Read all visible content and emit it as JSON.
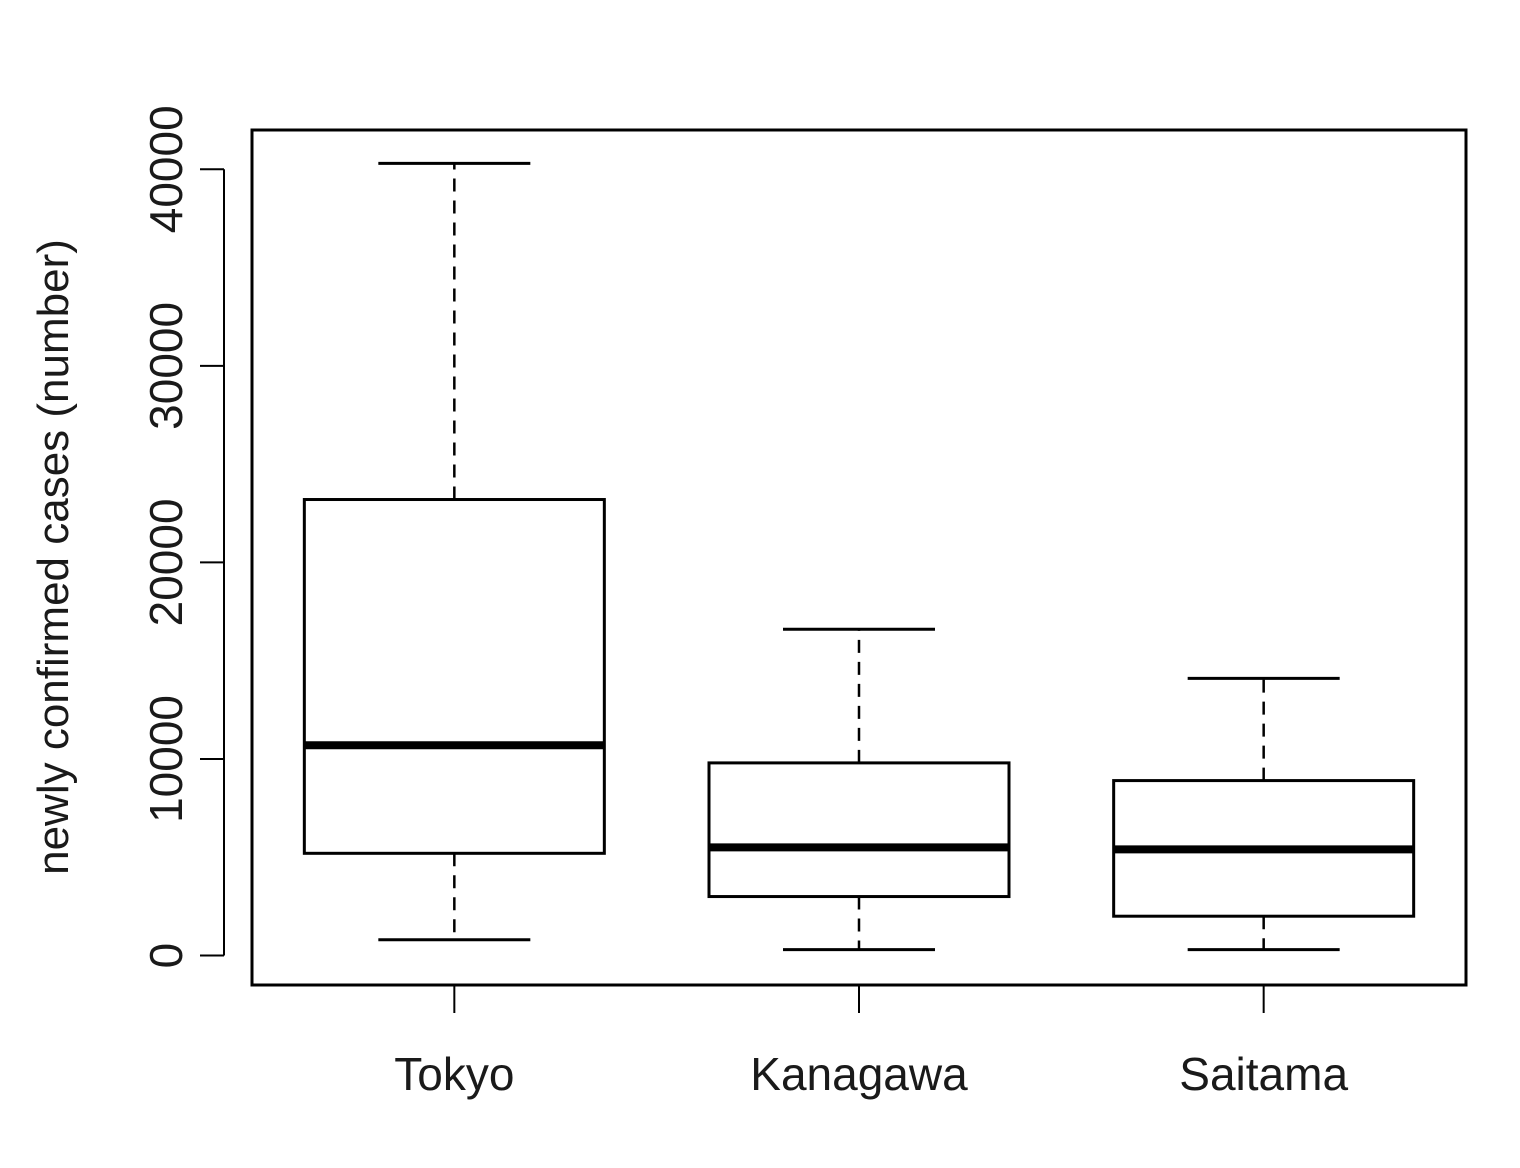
{
  "chart_data": {
    "type": "boxplot",
    "ylabel": "newly confirmed cases (number)",
    "ylim": [
      -1500,
      42000
    ],
    "yticks": [
      0,
      10000,
      20000,
      30000,
      40000
    ],
    "ytick_labels": [
      "0",
      "10000",
      "20000",
      "30000",
      "40000"
    ],
    "categories": [
      "Tokyo",
      "Kanagawa",
      "Saitama"
    ],
    "boxes": [
      {
        "category": "Tokyo",
        "whisker_low": 800,
        "q1": 5200,
        "median": 10700,
        "q3": 23200,
        "whisker_high": 40300
      },
      {
        "category": "Kanagawa",
        "whisker_low": 300,
        "q1": 3000,
        "median": 5500,
        "q3": 9800,
        "whisker_high": 16600
      },
      {
        "category": "Saitama",
        "whisker_low": 300,
        "q1": 2000,
        "median": 5400,
        "q3": 8900,
        "whisker_high": 14100
      }
    ],
    "grid": false,
    "legend": "none"
  }
}
